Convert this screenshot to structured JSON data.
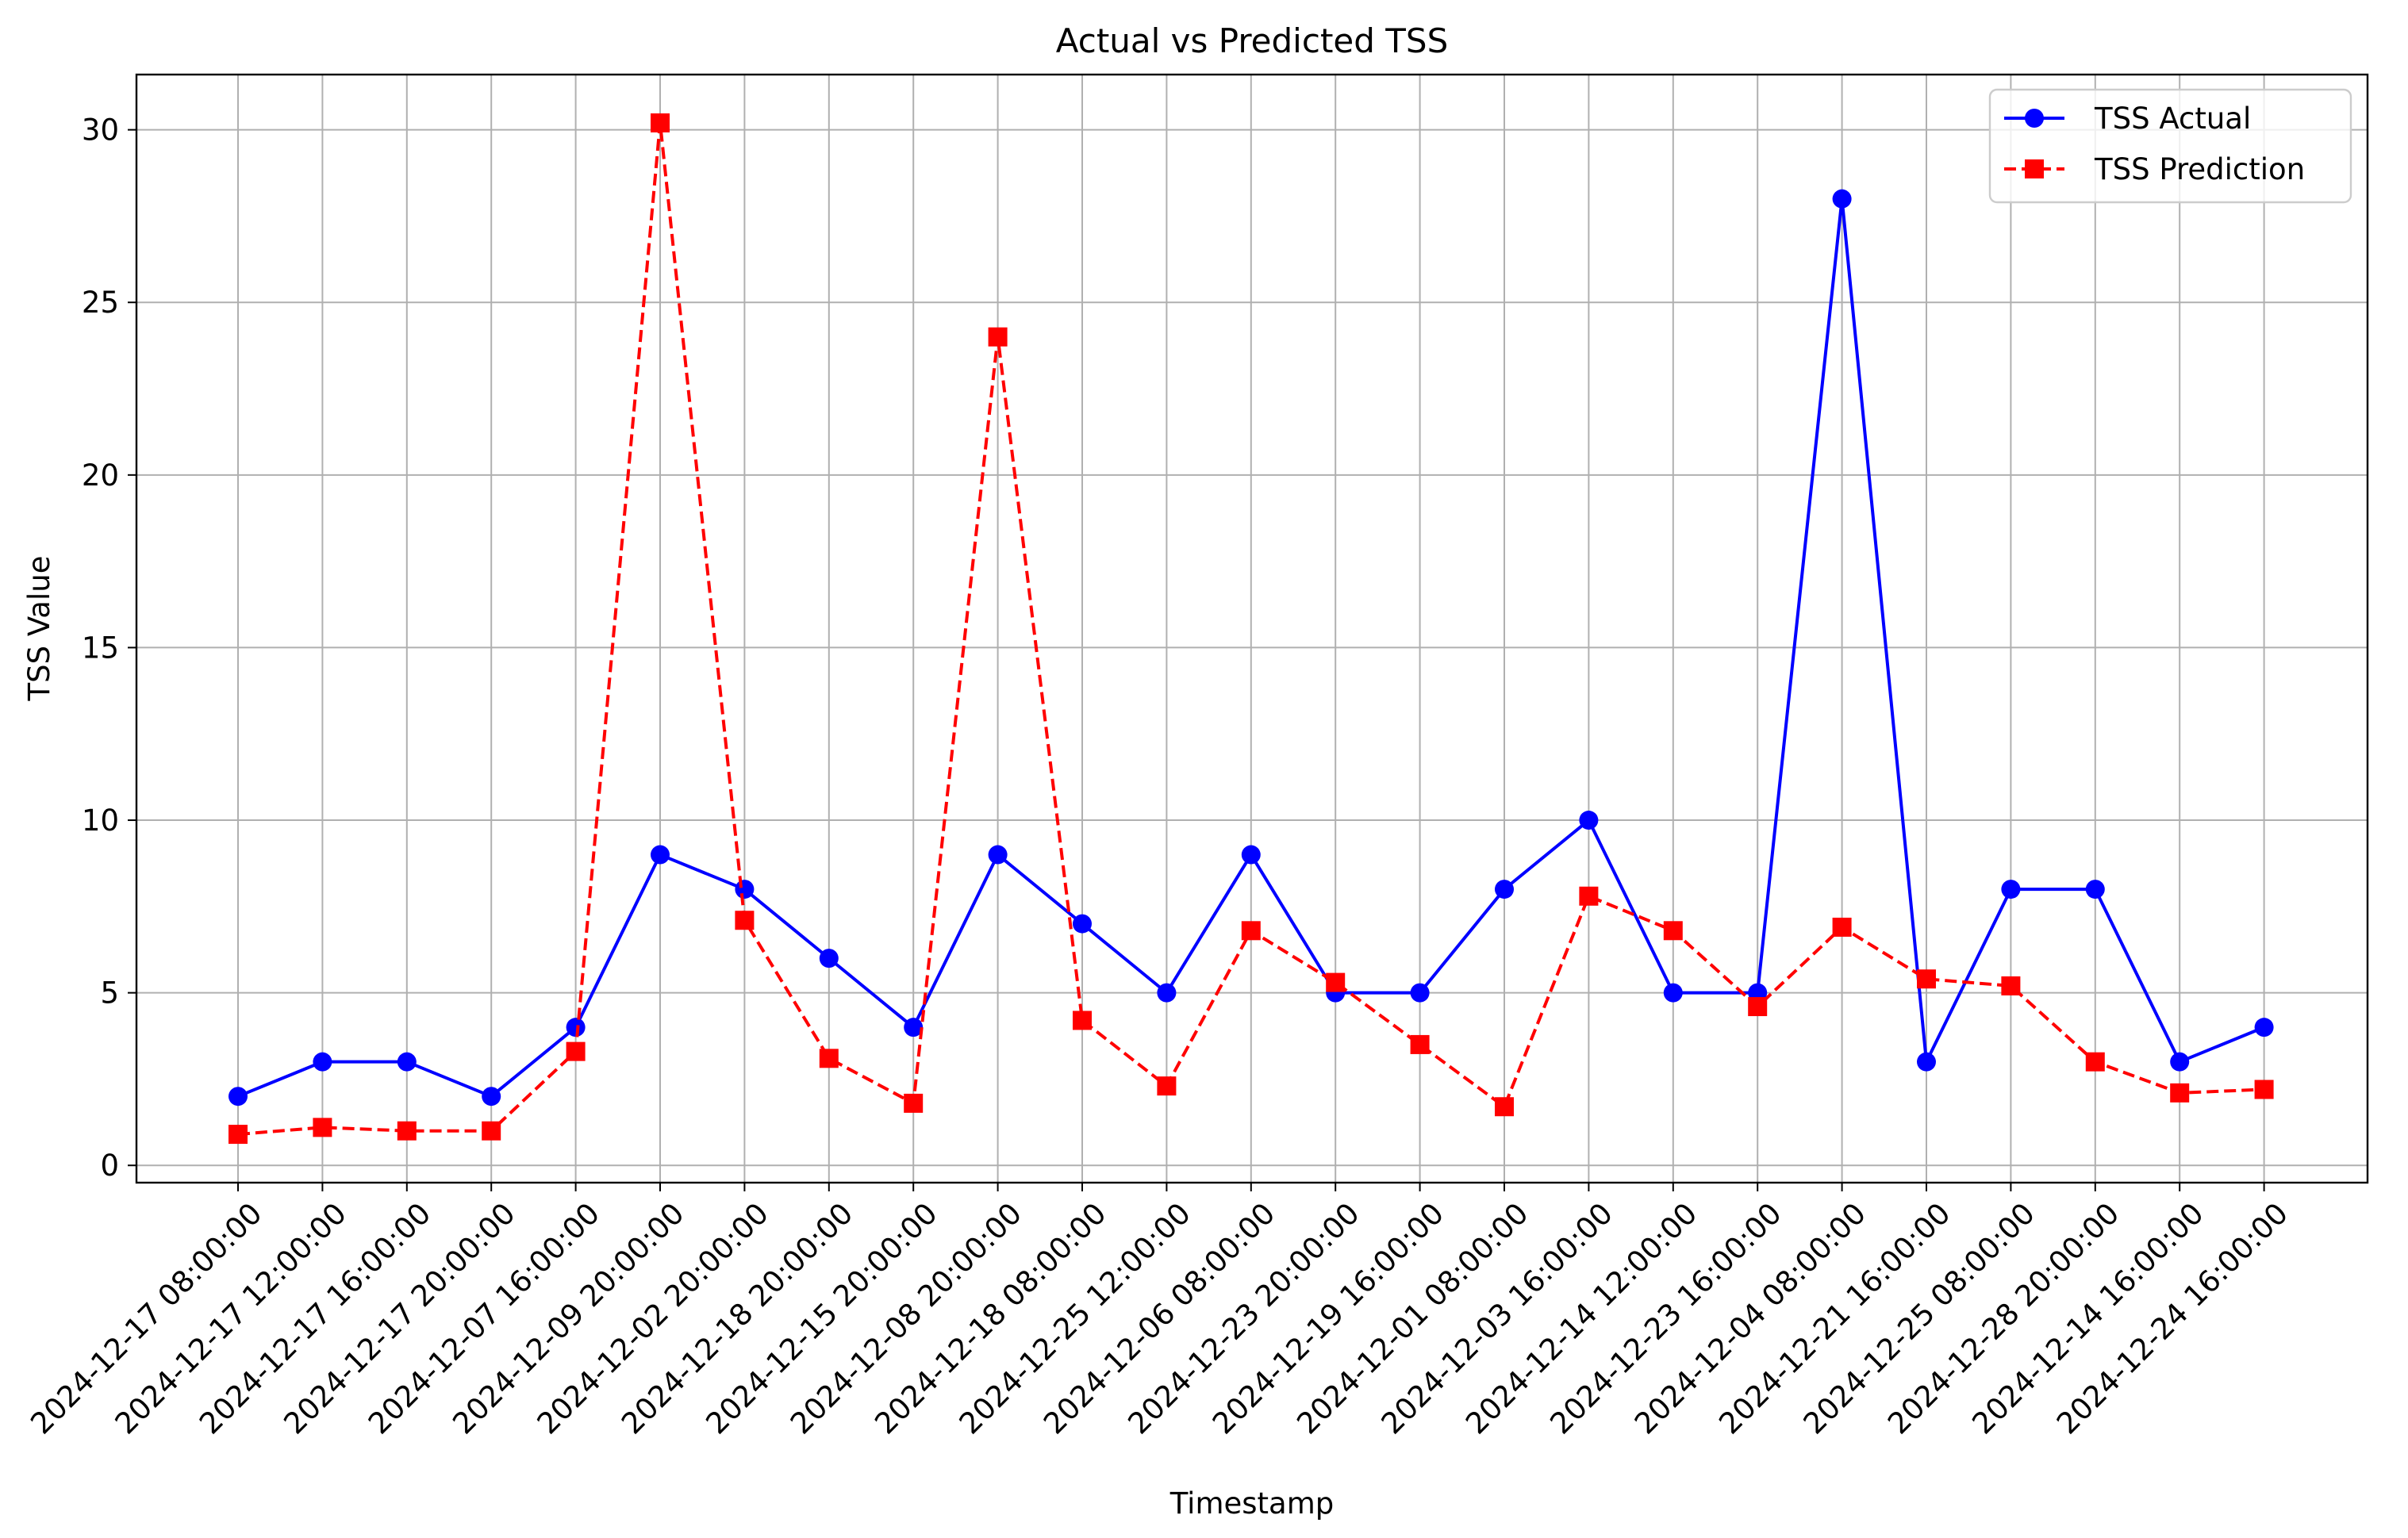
{
  "chart_data": {
    "type": "line",
    "title": "Actual vs Predicted TSS",
    "xlabel": "Timestamp",
    "ylabel": "TSS Value",
    "ylim": [
      -0.5,
      31.6
    ],
    "yticks": [
      0,
      5,
      10,
      15,
      20,
      25,
      30
    ],
    "grid": true,
    "legend_position": "top-right",
    "categories": [
      "2024-12-17 08:00:00",
      "2024-12-17 12:00:00",
      "2024-12-17 16:00:00",
      "2024-12-17 20:00:00",
      "2024-12-07 16:00:00",
      "2024-12-09 20:00:00",
      "2024-12-02 20:00:00",
      "2024-12-18 20:00:00",
      "2024-12-15 20:00:00",
      "2024-12-08 20:00:00",
      "2024-12-18 08:00:00",
      "2024-12-25 12:00:00",
      "2024-12-06 08:00:00",
      "2024-12-23 20:00:00",
      "2024-12-19 16:00:00",
      "2024-12-01 08:00:00",
      "2024-12-03 16:00:00",
      "2024-12-14 12:00:00",
      "2024-12-23 16:00:00",
      "2024-12-04 08:00:00",
      "2024-12-21 16:00:00",
      "2024-12-25 08:00:00",
      "2024-12-28 20:00:00",
      "2024-12-14 16:00:00",
      "2024-12-24 16:00:00"
    ],
    "series": [
      {
        "name": "TSS Actual",
        "color": "#0000ff",
        "line_style": "solid",
        "marker": "circle",
        "values": [
          2,
          3,
          3,
          2,
          4,
          9,
          8,
          6,
          4,
          9,
          7,
          5,
          9,
          5,
          5,
          8,
          10,
          5,
          5,
          28,
          3,
          8,
          8,
          3,
          4
        ]
      },
      {
        "name": "TSS Prediction",
        "color": "#ff0000",
        "line_style": "dashed",
        "marker": "square",
        "values": [
          0.9,
          1.1,
          1.0,
          1.0,
          3.3,
          30.2,
          7.1,
          3.1,
          1.8,
          24.0,
          4.2,
          2.3,
          6.8,
          5.3,
          3.5,
          1.7,
          7.8,
          6.8,
          4.6,
          6.9,
          5.4,
          5.2,
          3.0,
          2.1,
          2.2
        ]
      }
    ]
  }
}
